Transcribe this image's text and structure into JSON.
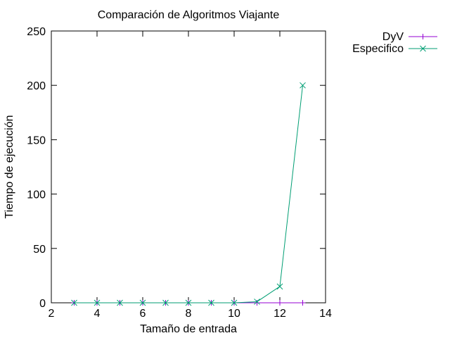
{
  "chart_data": {
    "type": "line",
    "title": "Comparación de Algoritmos Viajante",
    "xlabel": "Tamaño de entrada",
    "ylabel": "Tiempo de ejecución",
    "xlim": [
      2,
      14
    ],
    "ylim": [
      0,
      250
    ],
    "xticks": [
      2,
      4,
      6,
      8,
      10,
      12,
      14
    ],
    "yticks": [
      0,
      50,
      100,
      150,
      200,
      250
    ],
    "grid": false,
    "legend_position": "outside-top-right",
    "series": [
      {
        "name": "DyV",
        "color": "#9400d3",
        "marker": "plus",
        "x": [
          3,
          4,
          5,
          6,
          7,
          8,
          9,
          10,
          11,
          12,
          13
        ],
        "y": [
          0,
          0,
          0,
          0,
          0,
          0,
          0,
          0,
          0,
          0,
          0
        ]
      },
      {
        "name": "Especifico",
        "color": "#009e73",
        "marker": "cross",
        "x": [
          3,
          4,
          5,
          6,
          7,
          8,
          9,
          10,
          11,
          12,
          13
        ],
        "y": [
          0,
          0,
          0,
          0,
          0,
          0,
          0,
          0,
          1,
          15,
          200
        ]
      }
    ]
  }
}
